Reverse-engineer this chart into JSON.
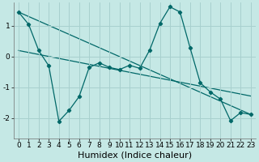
{
  "xlabel": "Humidex (Indice chaleur)",
  "background_color": "#c5e8e5",
  "grid_color": "#a8d0ce",
  "line_color": "#006868",
  "xlim": [
    -0.5,
    23.5
  ],
  "ylim": [
    -2.65,
    1.75
  ],
  "yticks": [
    -2,
    -1,
    0,
    1
  ],
  "xticks": [
    0,
    1,
    2,
    3,
    4,
    5,
    6,
    7,
    8,
    9,
    10,
    11,
    12,
    13,
    14,
    15,
    16,
    17,
    18,
    19,
    20,
    21,
    22,
    23
  ],
  "line1_x": [
    0,
    1,
    2,
    3,
    4,
    5,
    6,
    7,
    8,
    9,
    10,
    11,
    12,
    13,
    14,
    15,
    16,
    17,
    18,
    19,
    20,
    21,
    22,
    23
  ],
  "line1_y": [
    1.45,
    1.05,
    0.2,
    -0.3,
    -2.1,
    -1.75,
    -1.3,
    -0.35,
    -0.2,
    -0.35,
    -0.42,
    -0.28,
    -0.38,
    0.22,
    1.08,
    1.62,
    1.45,
    0.28,
    -0.85,
    -1.15,
    -1.38,
    -2.08,
    -1.82,
    -1.88
  ],
  "line2_x": [
    0,
    23
  ],
  "line2_y": [
    1.45,
    -1.88
  ],
  "line3_x": [
    0,
    23
  ],
  "line3_y": [
    0.2,
    -1.28
  ],
  "xlabel_fontsize": 8,
  "tick_fontsize": 6.5
}
